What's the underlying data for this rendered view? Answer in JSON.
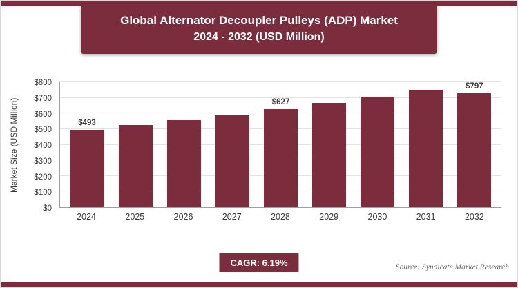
{
  "header": {
    "title_line1": "Global Alternator Decoupler Pulleys (ADP) Market",
    "title_line2": "2024 - 2032 (USD Million)"
  },
  "footer": {
    "cagr_label": "CAGR: 6.19%",
    "source": "Source: Syndicate Market Research"
  },
  "colors": {
    "accent": "#7B2D3E",
    "grid": "#e2e2e2",
    "axis": "#a0a0a0"
  },
  "chart_data": {
    "type": "bar",
    "title": "Global Alternator Decoupler Pulleys (ADP) Market 2024 - 2032 (USD Million)",
    "categories": [
      "2024",
      "2025",
      "2026",
      "2027",
      "2028",
      "2029",
      "2030",
      "2031",
      "2032"
    ],
    "values": [
      493,
      524,
      556,
      590,
      627,
      666,
      707,
      750,
      797
    ],
    "bar_labels": [
      "$493",
      "",
      "",
      "",
      "$627",
      "",
      "",
      "",
      "$797"
    ],
    "xlabel": "",
    "ylabel": "Market Size (USD Million)",
    "ylim": [
      0,
      800
    ],
    "y_ticks": [
      "$0",
      "$100",
      "$200",
      "$300",
      "$400",
      "$500",
      "$600",
      "$700",
      "$800"
    ],
    "grid": true,
    "legend": false,
    "bar_color": "#7B2D3E"
  }
}
